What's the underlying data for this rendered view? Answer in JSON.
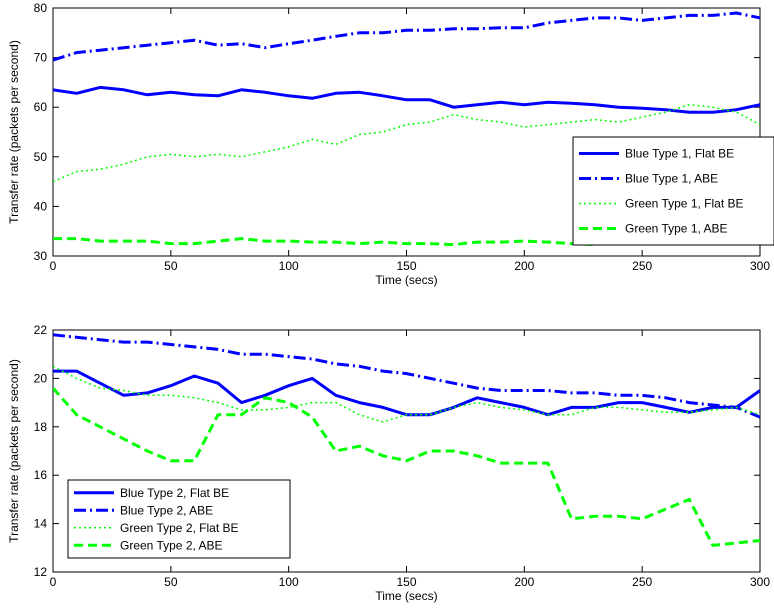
{
  "chart_data": [
    {
      "type": "line",
      "xlabel": "Time (secs)",
      "ylabel": "Transfer rate (packets per second)",
      "xlim": [
        0,
        300
      ],
      "ylim": [
        30,
        80
      ],
      "xticks": [
        0,
        50,
        100,
        150,
        200,
        250,
        300
      ],
      "yticks": [
        30,
        40,
        50,
        60,
        70,
        80
      ],
      "legend_position": "right",
      "x": [
        0,
        10,
        20,
        30,
        40,
        50,
        60,
        70,
        80,
        90,
        100,
        110,
        120,
        130,
        140,
        150,
        160,
        170,
        180,
        190,
        200,
        210,
        220,
        230,
        240,
        250,
        260,
        270,
        280,
        290,
        300
      ],
      "series": [
        {
          "name": "Blue Type 1, Flat BE",
          "color": "#0000ff",
          "style": "solid",
          "values": [
            63.5,
            62.8,
            64.0,
            63.5,
            62.5,
            63.0,
            62.5,
            62.3,
            63.5,
            63.0,
            62.3,
            61.8,
            62.8,
            63.0,
            62.3,
            61.5,
            61.5,
            60.0,
            60.5,
            61.0,
            60.5,
            61.0,
            60.8,
            60.5,
            60.0,
            59.8,
            59.5,
            59.0,
            59.0,
            59.5,
            60.5
          ]
        },
        {
          "name": "Blue Type 1, ABE",
          "color": "#0000ff",
          "style": "dashdot",
          "values": [
            69.5,
            71.0,
            71.5,
            72.0,
            72.5,
            73.0,
            73.5,
            72.5,
            72.8,
            72.0,
            72.8,
            73.5,
            74.3,
            75.0,
            75.0,
            75.5,
            75.5,
            75.8,
            75.8,
            76.0,
            76.0,
            77.0,
            77.5,
            78.0,
            78.0,
            77.5,
            78.0,
            78.5,
            78.5,
            79.0,
            78.0
          ]
        },
        {
          "name": "Green Type 1, Flat BE",
          "color": "#00ff00",
          "style": "dotted",
          "values": [
            45.0,
            47.0,
            47.5,
            48.5,
            50.0,
            50.5,
            50.0,
            50.5,
            50.0,
            51.0,
            52.0,
            53.5,
            52.5,
            54.5,
            55.0,
            56.5,
            57.0,
            58.5,
            57.5,
            57.0,
            56.0,
            56.5,
            57.0,
            57.5,
            57.0,
            58.0,
            59.0,
            60.5,
            60.0,
            59.0,
            56.5
          ]
        },
        {
          "name": "Green Type 1, ABE",
          "color": "#00ff00",
          "style": "dashed",
          "values": [
            33.5,
            33.5,
            33.0,
            33.0,
            33.0,
            32.5,
            32.5,
            33.0,
            33.5,
            33.0,
            33.0,
            32.8,
            32.8,
            32.5,
            32.8,
            32.5,
            32.5,
            32.3,
            32.8,
            32.8,
            33.0,
            32.8,
            32.5,
            32.3,
            33.0,
            33.5,
            34.0,
            34.5,
            34.0,
            33.5,
            34.0
          ]
        }
      ]
    },
    {
      "type": "line",
      "xlabel": "Time (secs)",
      "ylabel": "Transfer rate (packets per second)",
      "xlim": [
        0,
        300
      ],
      "ylim": [
        12,
        22
      ],
      "xticks": [
        0,
        50,
        100,
        150,
        200,
        250,
        300
      ],
      "yticks": [
        12,
        14,
        16,
        18,
        20,
        22
      ],
      "legend_position": "bottom-left",
      "x": [
        0,
        10,
        20,
        30,
        40,
        50,
        60,
        70,
        80,
        90,
        100,
        110,
        120,
        130,
        140,
        150,
        160,
        170,
        180,
        190,
        200,
        210,
        220,
        230,
        240,
        250,
        260,
        270,
        280,
        290,
        300
      ],
      "series": [
        {
          "name": "Blue Type 2, Flat BE",
          "color": "#0000ff",
          "style": "solid",
          "values": [
            20.3,
            20.3,
            19.8,
            19.3,
            19.4,
            19.7,
            20.1,
            19.8,
            19.0,
            19.3,
            19.7,
            20.0,
            19.3,
            19.0,
            18.8,
            18.5,
            18.5,
            18.8,
            19.2,
            19.0,
            18.8,
            18.5,
            18.8,
            18.8,
            19.0,
            19.0,
            18.8,
            18.6,
            18.8,
            18.8,
            19.5
          ]
        },
        {
          "name": "Blue Type 2, ABE",
          "color": "#0000ff",
          "style": "dashdot",
          "values": [
            21.8,
            21.7,
            21.6,
            21.5,
            21.5,
            21.4,
            21.3,
            21.2,
            21.0,
            21.0,
            20.9,
            20.8,
            20.6,
            20.5,
            20.3,
            20.2,
            20.0,
            19.8,
            19.6,
            19.5,
            19.5,
            19.5,
            19.4,
            19.4,
            19.3,
            19.3,
            19.2,
            19.0,
            18.9,
            18.8,
            18.4
          ]
        },
        {
          "name": "Green Type 2, Flat BE",
          "color": "#00ff00",
          "style": "dotted",
          "values": [
            20.5,
            20.0,
            19.6,
            19.5,
            19.3,
            19.3,
            19.2,
            19.0,
            18.7,
            18.7,
            18.8,
            19.0,
            19.0,
            18.5,
            18.2,
            18.5,
            18.5,
            18.8,
            19.0,
            18.8,
            18.7,
            18.5,
            18.5,
            18.8,
            18.8,
            18.7,
            18.6,
            18.6,
            18.7,
            18.8,
            18.5
          ]
        },
        {
          "name": "Green Type 2, ABE",
          "color": "#00ff00",
          "style": "dashed",
          "values": [
            19.6,
            18.5,
            18.0,
            17.5,
            17.0,
            16.6,
            16.6,
            18.5,
            18.5,
            19.2,
            19.0,
            18.4,
            17.0,
            17.2,
            16.8,
            16.6,
            17.0,
            17.0,
            16.8,
            16.5,
            16.5,
            16.5,
            14.2,
            14.3,
            14.3,
            14.2,
            14.6,
            15.0,
            13.1,
            13.2,
            13.3
          ]
        }
      ]
    }
  ]
}
